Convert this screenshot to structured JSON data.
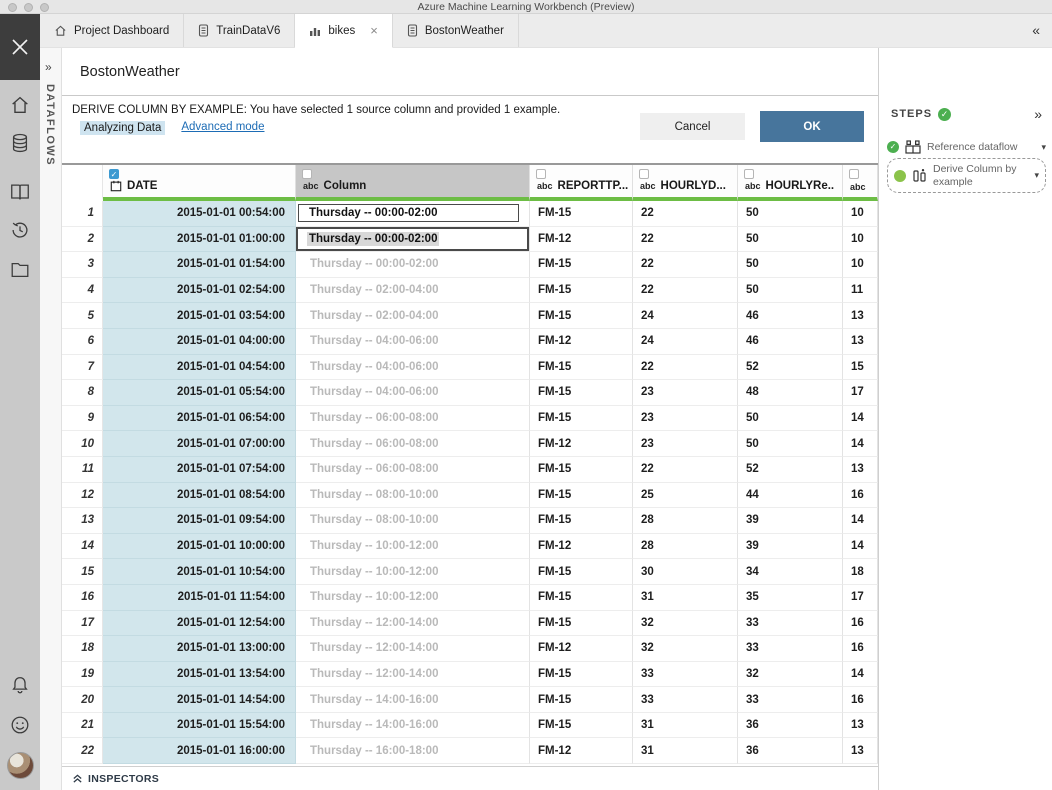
{
  "window": {
    "title": "Azure Machine Learning Workbench (Preview)"
  },
  "tabs": [
    {
      "label": "Project Dashboard",
      "icon": "home-icon",
      "active": false
    },
    {
      "label": "TrainDataV6",
      "icon": "data-file-icon",
      "active": false
    },
    {
      "label": "bikes",
      "icon": "bar-chart-icon",
      "active": true,
      "close": "×"
    },
    {
      "label": "BostonWeather",
      "icon": "data-file-icon",
      "active": false
    }
  ],
  "tab_bar": {
    "collapse_icon": "«"
  },
  "dataflows_panel": {
    "expand_icon": "»",
    "label": "DATAFLOWS"
  },
  "page": {
    "title": "BostonWeather"
  },
  "derive_bar": {
    "message": "DERIVE COLUMN BY EXAMPLE: You have selected 1 source column and provided 1 example.",
    "status": "Analyzing Data",
    "link": "Advanced mode",
    "cancel_label": "Cancel",
    "ok_label": "OK"
  },
  "table": {
    "columns": [
      {
        "name": "",
        "type": ""
      },
      {
        "name": "DATE",
        "type": "calendar",
        "checked": true
      },
      {
        "name": "Column",
        "type": "abc",
        "selected": true
      },
      {
        "name": "REPORTTP...",
        "type": "abc"
      },
      {
        "name": "HOURLYD...",
        "type": "abc"
      },
      {
        "name": "HOURLYRe..",
        "type": "abc"
      },
      {
        "name": "",
        "type": "abc"
      }
    ],
    "rows": [
      {
        "num": "1",
        "date": "2015-01-01 00:54:00",
        "derived": "Thursday -- 00:00-02:00",
        "state": "example",
        "report": "FM-15",
        "v1": "22",
        "v2": "50",
        "v3": "10"
      },
      {
        "num": "2",
        "date": "2015-01-01 01:00:00",
        "derived": "Thursday -- 00:00-02:00",
        "state": "editing",
        "report": "FM-12",
        "v1": "22",
        "v2": "50",
        "v3": "10"
      },
      {
        "num": "3",
        "date": "2015-01-01 01:54:00",
        "derived": "Thursday -- 00:00-02:00",
        "state": "predicted",
        "report": "FM-15",
        "v1": "22",
        "v2": "50",
        "v3": "10"
      },
      {
        "num": "4",
        "date": "2015-01-01 02:54:00",
        "derived": "Thursday -- 02:00-04:00",
        "state": "predicted",
        "report": "FM-15",
        "v1": "22",
        "v2": "50",
        "v3": "11"
      },
      {
        "num": "5",
        "date": "2015-01-01 03:54:00",
        "derived": "Thursday -- 02:00-04:00",
        "state": "predicted",
        "report": "FM-15",
        "v1": "24",
        "v2": "46",
        "v3": "13"
      },
      {
        "num": "6",
        "date": "2015-01-01 04:00:00",
        "derived": "Thursday -- 04:00-06:00",
        "state": "predicted",
        "report": "FM-12",
        "v1": "24",
        "v2": "46",
        "v3": "13"
      },
      {
        "num": "7",
        "date": "2015-01-01 04:54:00",
        "derived": "Thursday -- 04:00-06:00",
        "state": "predicted",
        "report": "FM-15",
        "v1": "22",
        "v2": "52",
        "v3": "15"
      },
      {
        "num": "8",
        "date": "2015-01-01 05:54:00",
        "derived": "Thursday -- 04:00-06:00",
        "state": "predicted",
        "report": "FM-15",
        "v1": "23",
        "v2": "48",
        "v3": "17"
      },
      {
        "num": "9",
        "date": "2015-01-01 06:54:00",
        "derived": "Thursday -- 06:00-08:00",
        "state": "predicted",
        "report": "FM-15",
        "v1": "23",
        "v2": "50",
        "v3": "14"
      },
      {
        "num": "10",
        "date": "2015-01-01 07:00:00",
        "derived": "Thursday -- 06:00-08:00",
        "state": "predicted",
        "report": "FM-12",
        "v1": "23",
        "v2": "50",
        "v3": "14"
      },
      {
        "num": "11",
        "date": "2015-01-01 07:54:00",
        "derived": "Thursday -- 06:00-08:00",
        "state": "predicted",
        "report": "FM-15",
        "v1": "22",
        "v2": "52",
        "v3": "13"
      },
      {
        "num": "12",
        "date": "2015-01-01 08:54:00",
        "derived": "Thursday -- 08:00-10:00",
        "state": "predicted",
        "report": "FM-15",
        "v1": "25",
        "v2": "44",
        "v3": "16"
      },
      {
        "num": "13",
        "date": "2015-01-01 09:54:00",
        "derived": "Thursday -- 08:00-10:00",
        "state": "predicted",
        "report": "FM-15",
        "v1": "28",
        "v2": "39",
        "v3": "14"
      },
      {
        "num": "14",
        "date": "2015-01-01 10:00:00",
        "derived": "Thursday -- 10:00-12:00",
        "state": "predicted",
        "report": "FM-12",
        "v1": "28",
        "v2": "39",
        "v3": "14"
      },
      {
        "num": "15",
        "date": "2015-01-01 10:54:00",
        "derived": "Thursday -- 10:00-12:00",
        "state": "predicted",
        "report": "FM-15",
        "v1": "30",
        "v2": "34",
        "v3": "18"
      },
      {
        "num": "16",
        "date": "2015-01-01 11:54:00",
        "derived": "Thursday -- 10:00-12:00",
        "state": "predicted",
        "report": "FM-15",
        "v1": "31",
        "v2": "35",
        "v3": "17"
      },
      {
        "num": "17",
        "date": "2015-01-01 12:54:00",
        "derived": "Thursday -- 12:00-14:00",
        "state": "predicted",
        "report": "FM-15",
        "v1": "32",
        "v2": "33",
        "v3": "16"
      },
      {
        "num": "18",
        "date": "2015-01-01 13:00:00",
        "derived": "Thursday -- 12:00-14:00",
        "state": "predicted",
        "report": "FM-12",
        "v1": "32",
        "v2": "33",
        "v3": "16"
      },
      {
        "num": "19",
        "date": "2015-01-01 13:54:00",
        "derived": "Thursday -- 12:00-14:00",
        "state": "predicted",
        "report": "FM-15",
        "v1": "33",
        "v2": "32",
        "v3": "14"
      },
      {
        "num": "20",
        "date": "2015-01-01 14:54:00",
        "derived": "Thursday -- 14:00-16:00",
        "state": "predicted",
        "report": "FM-15",
        "v1": "33",
        "v2": "33",
        "v3": "16"
      },
      {
        "num": "21",
        "date": "2015-01-01 15:54:00",
        "derived": "Thursday -- 14:00-16:00",
        "state": "predicted",
        "report": "FM-15",
        "v1": "31",
        "v2": "36",
        "v3": "13"
      },
      {
        "num": "22",
        "date": "2015-01-01 16:00:00",
        "derived": "Thursday -- 16:00-18:00",
        "state": "predicted",
        "report": "FM-12",
        "v1": "31",
        "v2": "36",
        "v3": "13"
      }
    ]
  },
  "steps_panel": {
    "title": "STEPS",
    "collapse_icon": "»",
    "items": [
      {
        "label": "Reference dataflow",
        "status": "complete"
      },
      {
        "label": "Derive Column by example",
        "status": "in-progress"
      }
    ]
  },
  "inspectors": {
    "label": "INSPECTORS"
  },
  "colors": {
    "accent_green": "#6dbd45",
    "ok_blue": "#47759c",
    "selected_column_blue": "#d2e6ec",
    "link_blue": "#1d6cb5"
  }
}
